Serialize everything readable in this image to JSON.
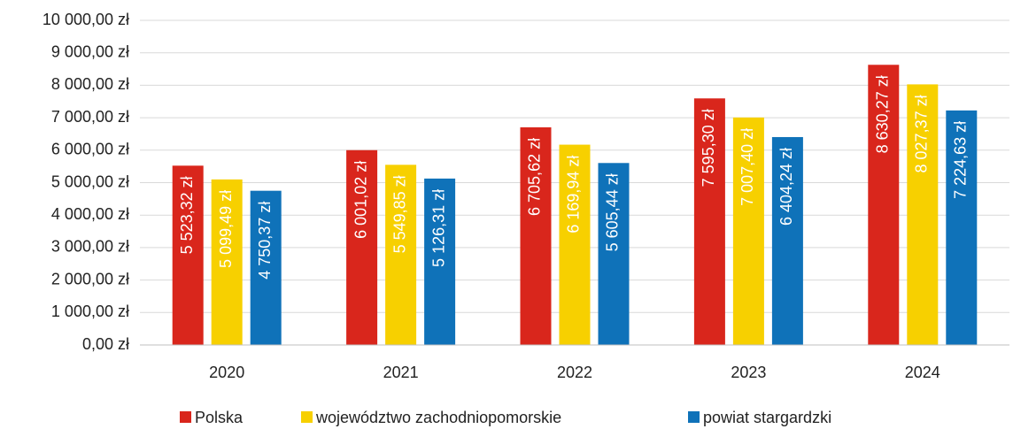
{
  "chart_data": {
    "type": "bar",
    "categories": [
      "2020",
      "2021",
      "2022",
      "2023",
      "2024"
    ],
    "series": [
      {
        "name": "Polska",
        "color": "#d9261c",
        "values": [
          5523.32,
          6001.02,
          6705.62,
          7595.3,
          8630.27
        ],
        "value_labels": [
          "5 523,32 zł",
          "6 001,02 zł",
          "6 705,62 zł",
          "7 595,30 zł",
          "8 630,27 zł"
        ]
      },
      {
        "name": "województwo zachodniopomorskie",
        "color": "#f7d000",
        "values": [
          5099.49,
          5549.85,
          6169.94,
          7007.4,
          8027.37
        ],
        "value_labels": [
          "5 099,49 zł",
          "5 549,85 zł",
          "6 169,94 zł",
          "7 007,40 zł",
          "8 027,37 zł"
        ]
      },
      {
        "name": "powiat stargardzki",
        "color": "#0f72b9",
        "values": [
          4750.37,
          5126.31,
          5605.44,
          6404.24,
          7224.63
        ],
        "value_labels": [
          "4 750,37 zł",
          "5 126,31 zł",
          "5 605,44 zł",
          "6 404,24 zł",
          "7 224,63 zł"
        ]
      }
    ],
    "ylim": [
      0,
      10000
    ],
    "yticks": [
      {
        "value": 0,
        "label": "0,00 zł"
      },
      {
        "value": 1000,
        "label": "1 000,00 zł"
      },
      {
        "value": 2000,
        "label": "2 000,00 zł"
      },
      {
        "value": 3000,
        "label": "3 000,00 zł"
      },
      {
        "value": 4000,
        "label": "4 000,00 zł"
      },
      {
        "value": 5000,
        "label": "5 000,00 zł"
      },
      {
        "value": 6000,
        "label": "6 000,00 zł"
      },
      {
        "value": 7000,
        "label": "7 000,00 zł"
      },
      {
        "value": 8000,
        "label": "8 000,00 zł"
      },
      {
        "value": 9000,
        "label": "9 000,00 zł"
      },
      {
        "value": 10000,
        "label": "10 000,00 zł"
      }
    ],
    "grid": true,
    "legend": "bottom"
  }
}
